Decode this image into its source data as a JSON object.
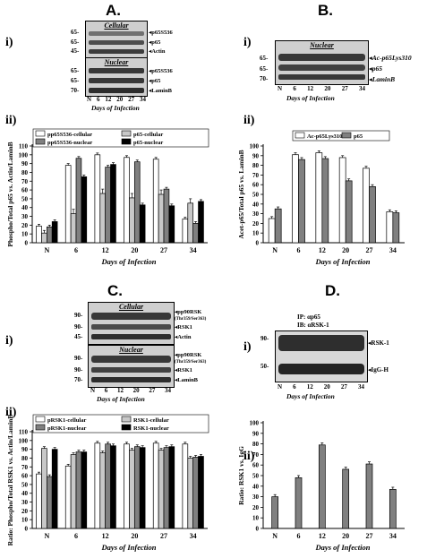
{
  "panels": {
    "A": "A.",
    "B": "B.",
    "C": "C.",
    "D": "D."
  },
  "sub": {
    "i": "i)",
    "ii": "ii)"
  },
  "blotA": {
    "cellular_title": "Cellular",
    "nuclear_title": "Nuclear",
    "mw": [
      "65-",
      "65-",
      "45-",
      "65-",
      "65-",
      "70-"
    ],
    "labels": [
      "p65S536",
      "p65",
      "Actin",
      "p65S536",
      "p65",
      "LaminB"
    ],
    "lanes": [
      "N",
      "6",
      "12",
      "20",
      "27",
      "34"
    ],
    "xtitle": "Days of Infection"
  },
  "blotB": {
    "title": "Nuclear",
    "mw": [
      "65-",
      "65-",
      "70-"
    ],
    "labels": [
      "Ac-p65Lys310",
      "p65",
      "LaminB"
    ],
    "lanes": [
      "N",
      "6",
      "12",
      "20",
      "27",
      "34"
    ],
    "xtitle": "Days of Infection"
  },
  "blotC": {
    "cellular_title": "Cellular",
    "nuclear_title": "Nuclear",
    "mw": [
      "90-",
      "90-",
      "45-",
      "90-",
      "90-",
      "70-"
    ],
    "labels": [
      "pp90RSK",
      "RSK1",
      "Actin",
      "pp90RSK",
      "RSK1",
      "LaminB"
    ],
    "sublabel": "(Thr359/Ser363)",
    "lanes": [
      "N",
      "6",
      "12",
      "20",
      "27",
      "34"
    ],
    "xtitle": "Days of Infection"
  },
  "blotD": {
    "ip": "IP: αp65",
    "ib": "IB: αRSK-1",
    "mw": [
      "90-",
      "50-"
    ],
    "labels": [
      "RSK-1",
      "IgG-H"
    ],
    "lanes": [
      "N",
      "6",
      "12",
      "20",
      "27",
      "34"
    ],
    "xtitle": "Days of Infection"
  },
  "chart_data": [
    {
      "id": "A-ii",
      "type": "bar",
      "ylabel": "Phospho/Total p65 vs. Actin/LaminB",
      "xlabel": "Days of Infection",
      "ylim": [
        0,
        110
      ],
      "yticks": [
        0,
        10,
        20,
        30,
        40,
        50,
        60,
        70,
        80,
        90,
        100,
        110
      ],
      "categories": [
        "N",
        "6",
        "12",
        "20",
        "27",
        "34"
      ],
      "series": [
        {
          "name": "pp65S536-cellular",
          "color": "#ffffff",
          "values": [
            19,
            88,
            100,
            97,
            95,
            27
          ],
          "errors": [
            2,
            2,
            2,
            2,
            2,
            2
          ]
        },
        {
          "name": "p65-cellular",
          "color": "#c8c8c8",
          "values": [
            11,
            33,
            56,
            51,
            55,
            45
          ],
          "errors": [
            3,
            5,
            5,
            5,
            5,
            5
          ]
        },
        {
          "name": "pp65S536-nuclear",
          "color": "#808080",
          "values": [
            18,
            96,
            86,
            92,
            61,
            22
          ],
          "errors": [
            2,
            2,
            2,
            2,
            2,
            2
          ]
        },
        {
          "name": "p65-nuclear",
          "color": "#000000",
          "values": [
            24,
            75,
            89,
            43,
            42,
            47
          ],
          "errors": [
            2,
            2,
            2,
            2,
            2,
            2
          ]
        }
      ]
    },
    {
      "id": "B-ii",
      "type": "bar",
      "ylabel": "Acet-p65/Total p65 vs. LaminB",
      "xlabel": "Days of Infection",
      "ylim": [
        0,
        100
      ],
      "yticks": [
        0,
        10,
        20,
        30,
        40,
        50,
        60,
        70,
        80,
        90,
        100
      ],
      "categories": [
        "N",
        "6",
        "12",
        "20",
        "27",
        "34"
      ],
      "series": [
        {
          "name": "Ac-p65Lys310",
          "color": "#ffffff",
          "values": [
            25,
            91,
            93,
            88,
            77,
            32
          ],
          "errors": [
            2,
            2,
            2,
            2,
            2,
            2
          ]
        },
        {
          "name": "p65",
          "color": "#808080",
          "values": [
            35,
            86,
            87,
            64,
            58,
            31
          ],
          "errors": [
            2,
            2,
            2,
            2,
            2,
            2
          ]
        }
      ]
    },
    {
      "id": "C-ii",
      "type": "bar",
      "ylabel": "Ratio: Phospho/Total RSK1 vs. Actin/LaminB",
      "xlabel": "Days of Infection",
      "ylim": [
        0,
        110
      ],
      "yticks": [
        0,
        10,
        20,
        30,
        40,
        50,
        60,
        70,
        80,
        90,
        100,
        110
      ],
      "categories": [
        "N",
        "6",
        "12",
        "20",
        "27",
        "34"
      ],
      "series": [
        {
          "name": "pRSK1-cellular",
          "color": "#ffffff",
          "values": [
            62,
            71,
            97,
            96,
            97,
            96
          ],
          "errors": [
            2,
            2,
            2,
            2,
            2,
            2
          ]
        },
        {
          "name": "RSK1-cellular",
          "color": "#c8c8c8",
          "values": [
            91,
            84,
            86,
            89,
            89,
            80
          ],
          "errors": [
            2,
            2,
            2,
            2,
            2,
            2
          ]
        },
        {
          "name": "pRSK1-nuclear",
          "color": "#808080",
          "values": [
            59,
            87,
            96,
            93,
            92,
            81
          ],
          "errors": [
            2,
            2,
            2,
            2,
            2,
            2
          ]
        },
        {
          "name": "RSK1-nuclear",
          "color": "#000000",
          "values": [
            90,
            87,
            94,
            92,
            93,
            82
          ],
          "errors": [
            2,
            2,
            2,
            2,
            2,
            2
          ]
        }
      ]
    },
    {
      "id": "D-ii",
      "type": "bar",
      "ylabel": "Ratio: RSK1 vs. IgG",
      "xlabel": "Days of Infection",
      "ylim": [
        0,
        100
      ],
      "yticks": [
        0,
        10,
        20,
        30,
        40,
        50,
        60,
        70,
        80,
        90,
        100
      ],
      "categories": [
        "N",
        "6",
        "12",
        "20",
        "27",
        "34"
      ],
      "series": [
        {
          "name": "",
          "color": "#808080",
          "values": [
            30,
            48,
            79,
            56,
            61,
            37
          ],
          "errors": [
            2,
            2,
            2,
            2,
            2,
            2
          ]
        }
      ]
    }
  ]
}
